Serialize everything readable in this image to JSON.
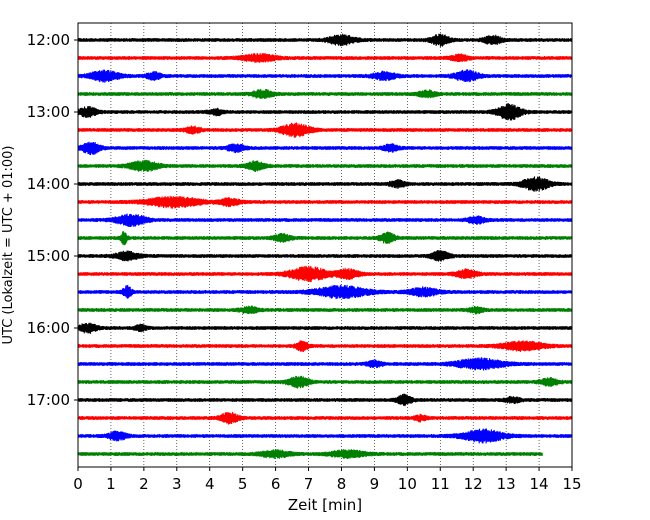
{
  "chart_data": {
    "type": "line",
    "title": "",
    "xlabel": "Zeit  [min]",
    "ylabel": "UTC (Lokalzeit = UTC + 01:00)",
    "xlim": [
      0,
      15
    ],
    "x_ticks": [
      0,
      1,
      2,
      3,
      4,
      5,
      6,
      7,
      8,
      9,
      10,
      11,
      12,
      13,
      14,
      15
    ],
    "y_ticks": [
      {
        "label": "12:00",
        "row": 0
      },
      {
        "label": "13:00",
        "row": 4
      },
      {
        "label": "14:00",
        "row": 8
      },
      {
        "label": "15:00",
        "row": 12
      },
      {
        "label": "16:00",
        "row": 16
      },
      {
        "label": "17:00",
        "row": 20
      }
    ],
    "grid": {
      "x_major": true,
      "style": "dotted"
    },
    "trace_colors": [
      "#000000",
      "#ff0000",
      "#0000ff",
      "#008000"
    ],
    "traces": [
      {
        "start": "12:00",
        "end_min": 15,
        "bursts": [
          [
            8.0,
            1.4,
            0.9
          ],
          [
            11.0,
            1.6,
            0.6
          ],
          [
            12.6,
            1.2,
            0.6
          ]
        ]
      },
      {
        "start": "12:15",
        "end_min": 15,
        "bursts": [
          [
            5.5,
            1.0,
            1.2
          ],
          [
            11.6,
            0.9,
            0.6
          ]
        ]
      },
      {
        "start": "12:30",
        "end_min": 15,
        "bursts": [
          [
            0.8,
            1.5,
            1.0
          ],
          [
            9.3,
            1.1,
            0.8
          ],
          [
            11.8,
            1.6,
            0.8
          ],
          [
            2.3,
            1.0,
            0.5
          ]
        ]
      },
      {
        "start": "12:45",
        "end_min": 15,
        "bursts": [
          [
            5.6,
            1.1,
            0.7
          ],
          [
            10.6,
            0.9,
            0.6
          ]
        ]
      },
      {
        "start": "13:00",
        "end_min": 15,
        "bursts": [
          [
            0.3,
            1.4,
            0.6
          ],
          [
            13.1,
            2.2,
            0.8
          ],
          [
            4.2,
            0.8,
            0.5
          ]
        ]
      },
      {
        "start": "13:15",
        "end_min": 15,
        "bursts": [
          [
            6.6,
            1.8,
            1.0
          ],
          [
            3.5,
            0.9,
            0.5
          ]
        ]
      },
      {
        "start": "13:30",
        "end_min": 15,
        "bursts": [
          [
            0.4,
            1.7,
            0.6
          ],
          [
            4.8,
            1.1,
            0.6
          ],
          [
            9.5,
            1.0,
            0.5
          ]
        ]
      },
      {
        "start": "13:45",
        "end_min": 15,
        "bursts": [
          [
            2.0,
            1.4,
            1.0
          ],
          [
            5.4,
            1.3,
            0.6
          ]
        ]
      },
      {
        "start": "14:00",
        "end_min": 15,
        "bursts": [
          [
            9.7,
            1.0,
            0.5
          ],
          [
            13.9,
            2.0,
            0.9
          ]
        ]
      },
      {
        "start": "14:15",
        "end_min": 15,
        "bursts": [
          [
            2.9,
            1.5,
            1.8
          ],
          [
            4.6,
            1.0,
            0.7
          ]
        ]
      },
      {
        "start": "14:30",
        "end_min": 15,
        "bursts": [
          [
            1.6,
            1.6,
            1.0
          ],
          [
            12.1,
            1.0,
            0.6
          ]
        ]
      },
      {
        "start": "14:45",
        "end_min": 15,
        "bursts": [
          [
            1.4,
            1.9,
            0.2
          ],
          [
            6.2,
            1.0,
            0.6
          ],
          [
            9.4,
            1.5,
            0.5
          ]
        ]
      },
      {
        "start": "15:00",
        "end_min": 15,
        "bursts": [
          [
            1.5,
            1.2,
            0.8
          ],
          [
            11.0,
            1.4,
            0.6
          ]
        ]
      },
      {
        "start": "15:15",
        "end_min": 15,
        "bursts": [
          [
            7.0,
            2.0,
            1.3
          ],
          [
            8.2,
            1.4,
            0.7
          ],
          [
            11.8,
            1.2,
            0.7
          ]
        ]
      },
      {
        "start": "15:30",
        "end_min": 15,
        "bursts": [
          [
            1.5,
            1.7,
            0.3
          ],
          [
            8.0,
            1.7,
            1.8
          ],
          [
            10.5,
            1.2,
            1.0
          ]
        ]
      },
      {
        "start": "15:45",
        "end_min": 15,
        "bursts": [
          [
            5.2,
            0.9,
            0.6
          ],
          [
            12.1,
            0.8,
            0.5
          ]
        ]
      },
      {
        "start": "16:00",
        "end_min": 15,
        "bursts": [
          [
            0.3,
            1.3,
            0.6
          ],
          [
            1.9,
            0.8,
            0.4
          ]
        ]
      },
      {
        "start": "16:15",
        "end_min": 15,
        "bursts": [
          [
            6.8,
            1.4,
            0.4
          ],
          [
            13.5,
            1.3,
            1.4
          ]
        ]
      },
      {
        "start": "16:30",
        "end_min": 15,
        "bursts": [
          [
            12.2,
            1.5,
            1.6
          ],
          [
            9.0,
            0.9,
            0.5
          ]
        ]
      },
      {
        "start": "16:45",
        "end_min": 15,
        "bursts": [
          [
            6.7,
            1.5,
            0.7
          ],
          [
            14.3,
            1.1,
            0.6
          ]
        ]
      },
      {
        "start": "17:00",
        "end_min": 15,
        "bursts": [
          [
            9.9,
            1.4,
            0.5
          ],
          [
            13.2,
            0.8,
            0.5
          ]
        ]
      },
      {
        "start": "17:15",
        "end_min": 15,
        "bursts": [
          [
            4.6,
            1.5,
            0.6
          ],
          [
            10.4,
            0.8,
            0.4
          ]
        ]
      },
      {
        "start": "17:30",
        "end_min": 15,
        "bursts": [
          [
            1.2,
            1.2,
            0.6
          ],
          [
            12.3,
            1.8,
            1.4
          ]
        ]
      },
      {
        "start": "17:45",
        "end_min": 14.1,
        "bursts": [
          [
            6.0,
            1.0,
            1.0
          ],
          [
            8.2,
            1.0,
            1.2
          ]
        ]
      }
    ]
  }
}
